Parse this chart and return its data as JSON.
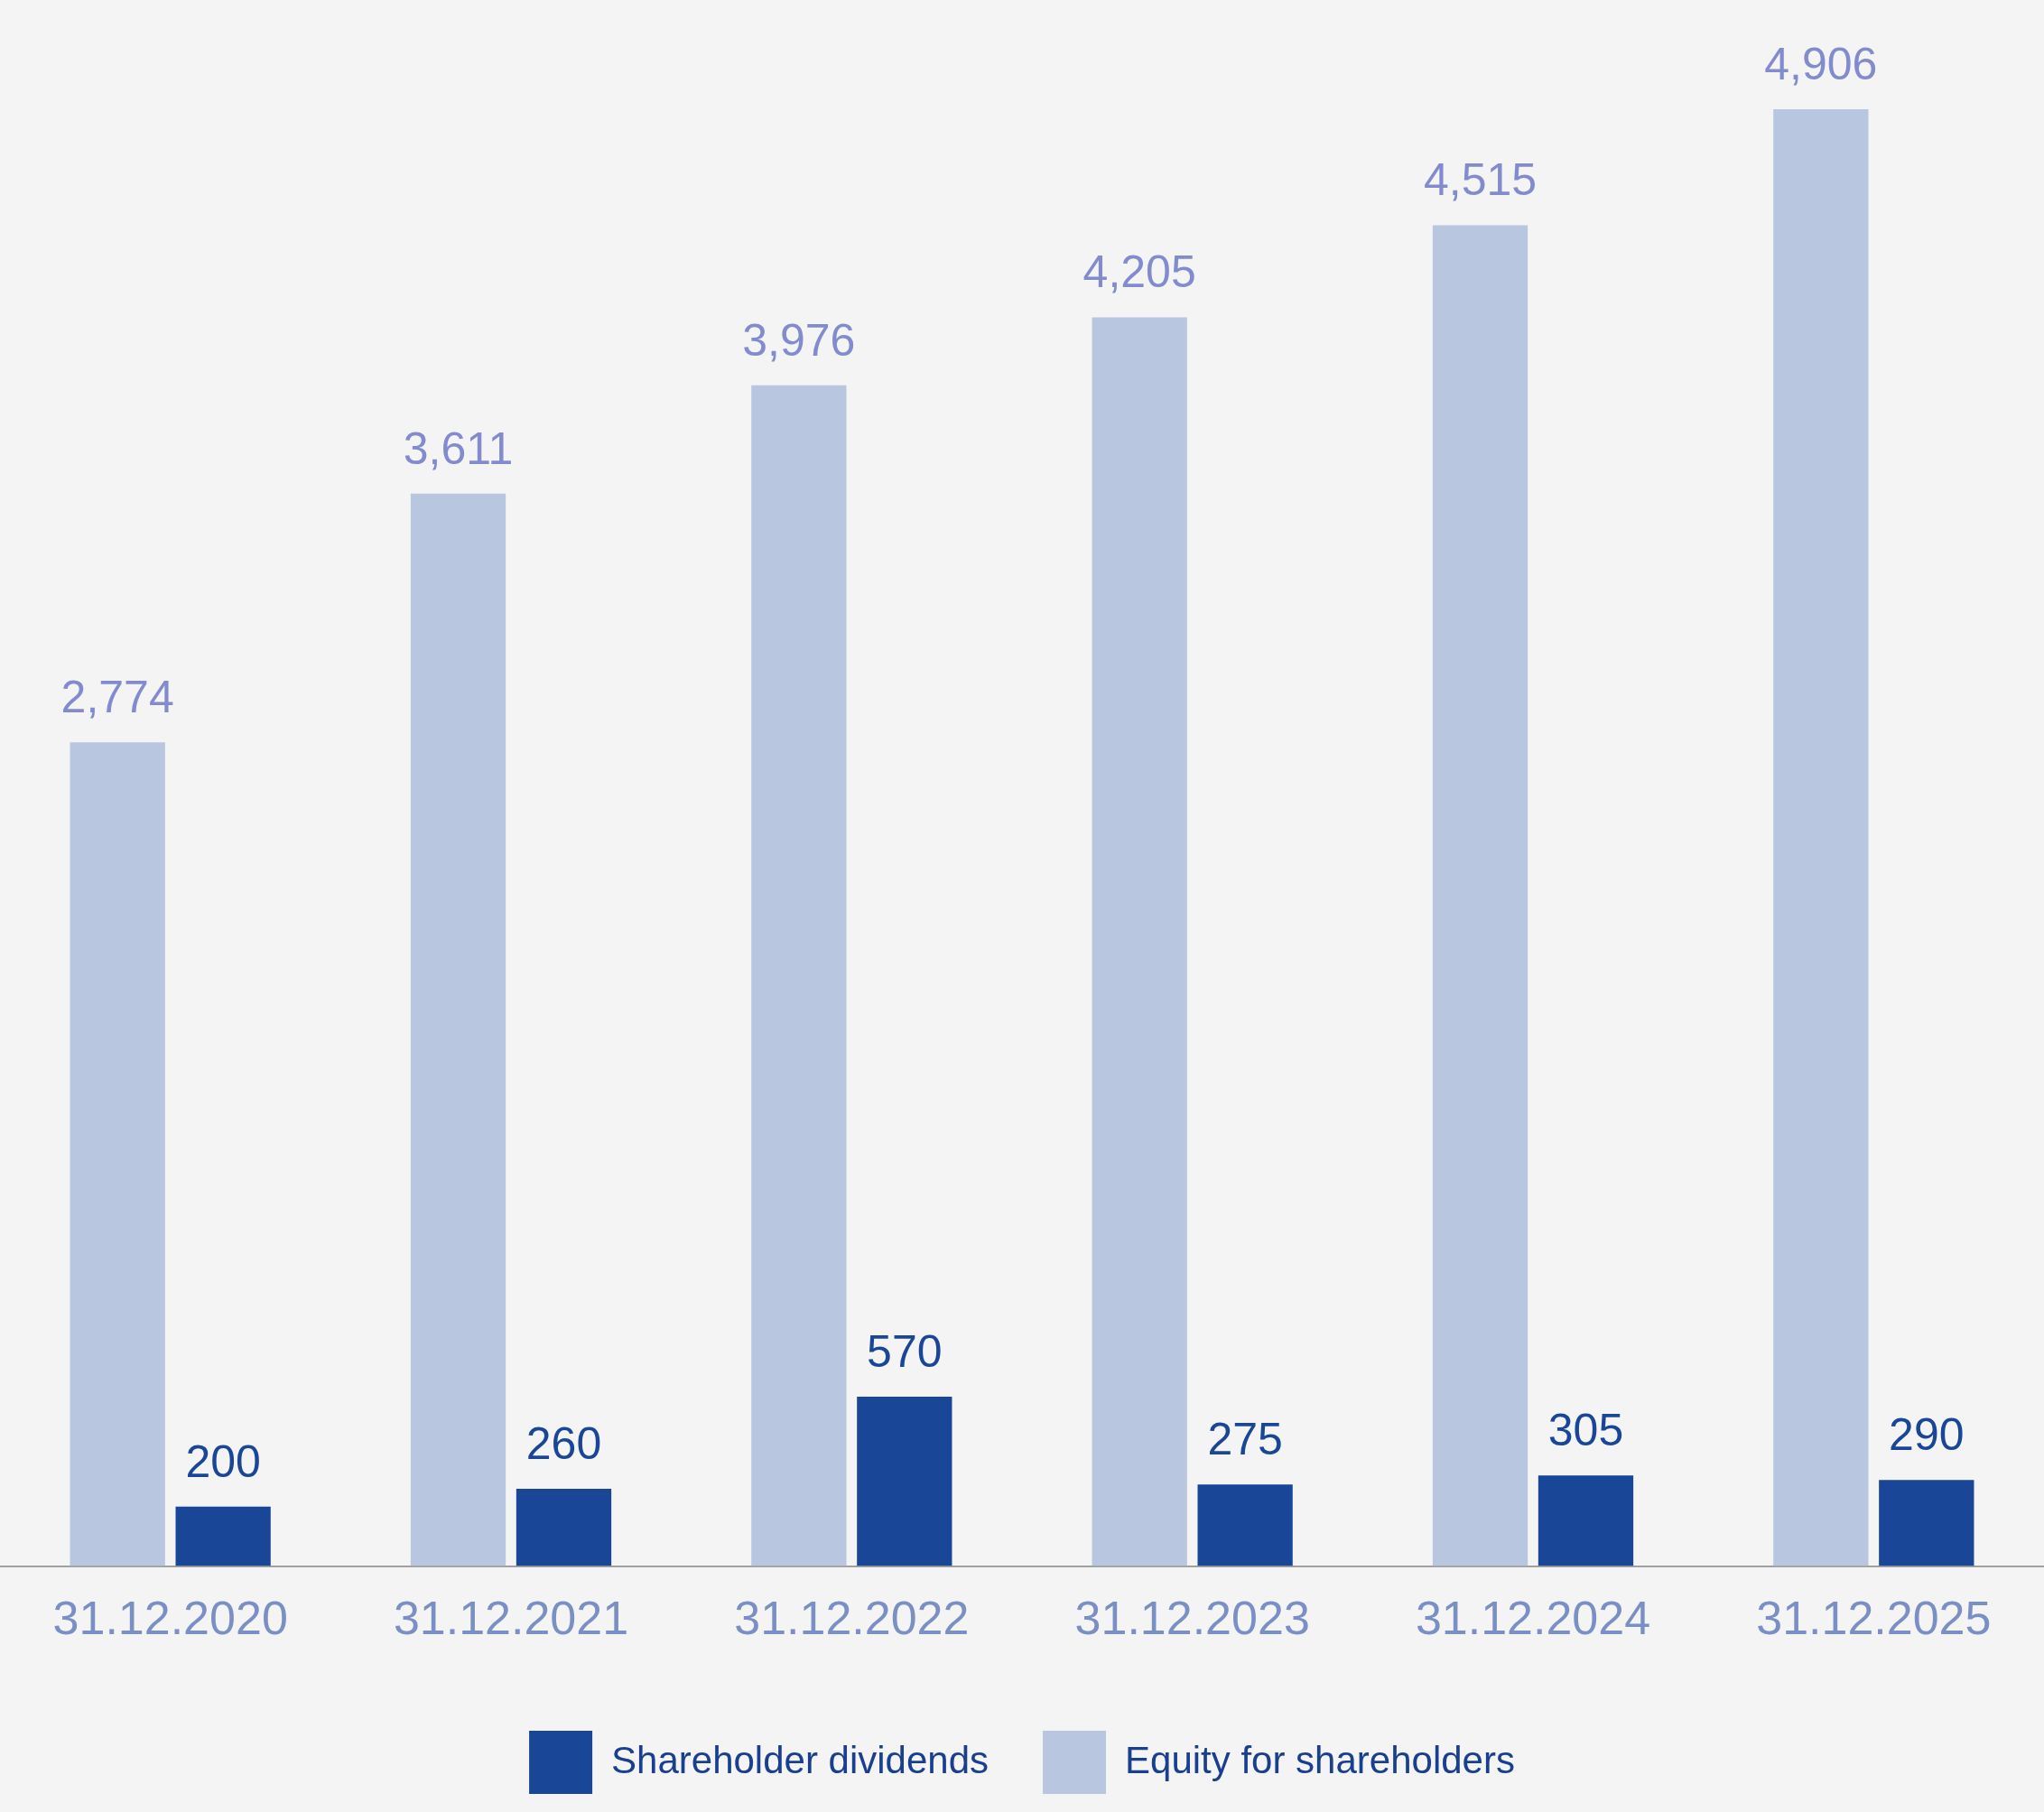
{
  "chart_data": {
    "type": "bar",
    "categories": [
      "31.12.2020",
      "31.12.2021",
      "31.12.2022",
      "31.12.2023",
      "31.12.2024",
      "31.12.2025"
    ],
    "series": [
      {
        "name": "Equity for shareholders",
        "color": "#b8c6e0",
        "values": [
          2774,
          3611,
          3976,
          4205,
          4515,
          4906
        ],
        "value_labels": [
          "2,774",
          "3,611",
          "3,976",
          "4,205",
          "4,515",
          "4,906"
        ]
      },
      {
        "name": "Shareholder dividends",
        "color": "#1a4698",
        "values": [
          200,
          260,
          570,
          275,
          305,
          290
        ],
        "value_labels": [
          "200",
          "260",
          "570",
          "275",
          "305",
          "290"
        ]
      }
    ],
    "legend": "bottom",
    "grid": false
  }
}
